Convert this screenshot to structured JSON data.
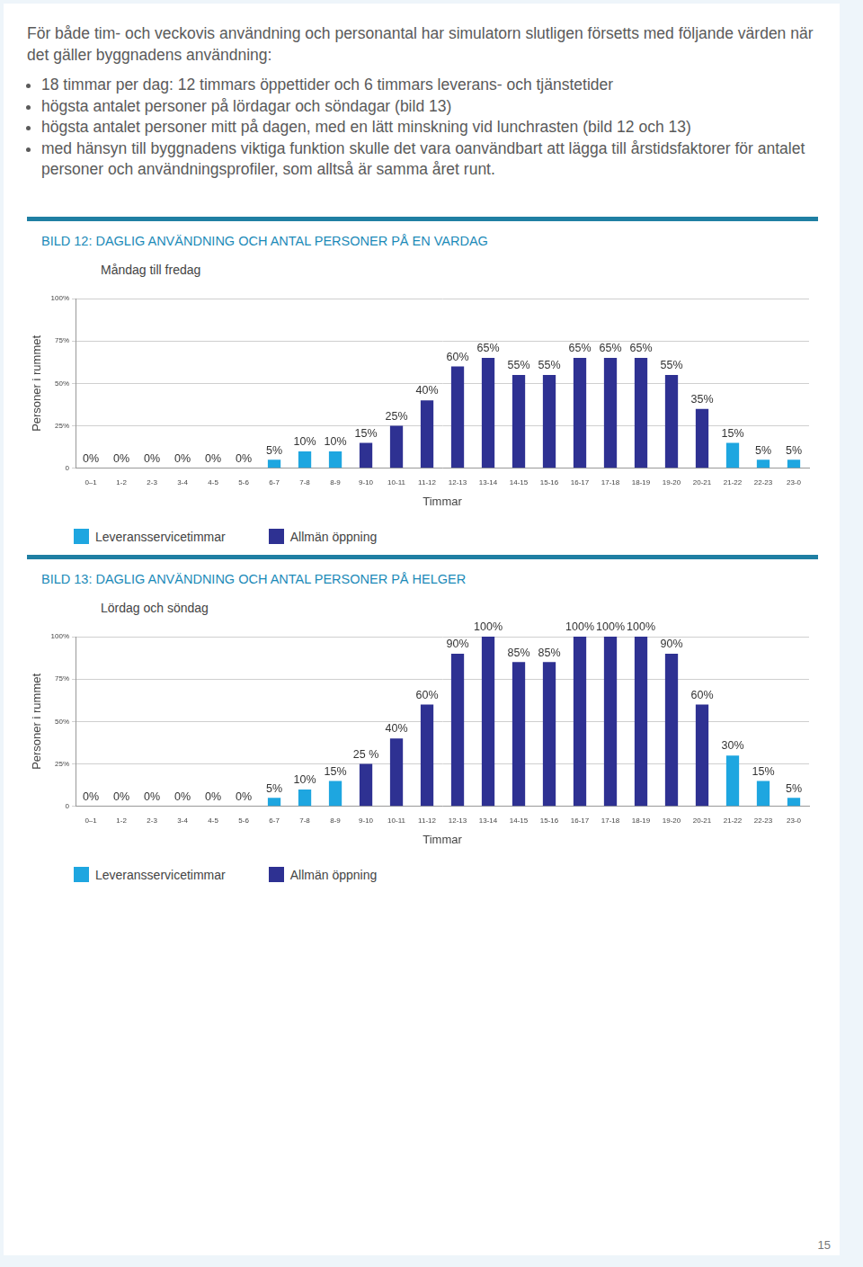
{
  "intro": {
    "text": "För både tim- och veckovis användning och personantal har simulatorn slutligen försetts med följande värden när det gäller byggnadens användning:",
    "bullets": [
      "18 timmar per dag: 12 timmars öppettider och 6 timmars leverans- och tjänstetider",
      "högsta antalet personer på lördagar och söndagar (bild 13)",
      "högsta antalet personer mitt på dagen, med en lätt minskning vid lunchrasten (bild 12 och 13)",
      "med hänsyn till byggnadens viktiga funktion skulle det vara oanvändbart att lägga till årstidsfaktorer för antalet personer och användningsprofiler, som alltså är samma året runt."
    ]
  },
  "page_number": "15",
  "chart_data": [
    {
      "type": "bar",
      "title": "BILD 12: DAGLIG ANVÄNDNING OCH ANTAL PERSONER PÅ EN VARDAG",
      "subtitle": "Måndag till fredag",
      "x_label": "Timmar",
      "y_label": "Personer i rummet",
      "categories": [
        "0–1",
        "1-2",
        "2-3",
        "3-4",
        "4-5",
        "5-6",
        "6-7",
        "7-8",
        "8-9",
        "9-10",
        "10-11",
        "11-12",
        "12-13",
        "13-14",
        "14-15",
        "15-16",
        "16-17",
        "17-18",
        "18-19",
        "19-20",
        "20-21",
        "21-22",
        "22-23",
        "23-0"
      ],
      "series": [
        {
          "name": "Leveransservicetimmar",
          "color": "#1ea6e0",
          "values": [
            0,
            0,
            0,
            0,
            0,
            0,
            5,
            10,
            10,
            null,
            null,
            null,
            null,
            null,
            null,
            null,
            null,
            null,
            null,
            null,
            null,
            15,
            5,
            5
          ],
          "value_labels": [
            "0%",
            "0%",
            "0%",
            "0%",
            "0%",
            "0%",
            "5%",
            "10%",
            "10%",
            null,
            null,
            null,
            null,
            null,
            null,
            null,
            null,
            null,
            null,
            null,
            null,
            "15%",
            "5%",
            "5%"
          ]
        },
        {
          "name": "Allmän öppning",
          "color": "#2e3192",
          "values": [
            null,
            null,
            null,
            null,
            null,
            null,
            null,
            null,
            null,
            15,
            25,
            40,
            60,
            65,
            55,
            55,
            65,
            65,
            65,
            55,
            35,
            null,
            null,
            null
          ],
          "value_labels": [
            null,
            null,
            null,
            null,
            null,
            null,
            null,
            null,
            null,
            "15%",
            "25%",
            "40%",
            "60%",
            "65%",
            "55%",
            "55%",
            "65%",
            "65%",
            "65%",
            "55%",
            "35%",
            null,
            null,
            null
          ]
        }
      ],
      "ylim": [
        0,
        100
      ],
      "yticks": [
        0,
        {
          "value": 25,
          "label": "25%"
        },
        {
          "value": 50,
          "label": "50%"
        },
        {
          "value": 75,
          "label": "75%"
        },
        {
          "value": 100,
          "label": "100%"
        }
      ],
      "grid": true,
      "data_labels": true,
      "legend": "bottom"
    },
    {
      "type": "bar",
      "title": "BILD 13: DAGLIG ANVÄNDNING OCH ANTAL PERSONER PÅ HELGER",
      "subtitle": "Lördag och söndag",
      "x_label": "Timmar",
      "y_label": "Personer i rummet",
      "categories": [
        "0–1",
        "1-2",
        "2-3",
        "3-4",
        "4-5",
        "5-6",
        "6-7",
        "7-8",
        "8-9",
        "9-10",
        "10-11",
        "11-12",
        "12-13",
        "13-14",
        "14-15",
        "15-16",
        "16-17",
        "17-18",
        "18-19",
        "19-20",
        "20-21",
        "21-22",
        "22-23",
        "23-0"
      ],
      "series": [
        {
          "name": "Leveransservicetimmar",
          "color": "#1ea6e0",
          "values": [
            0,
            0,
            0,
            0,
            0,
            0,
            5,
            10,
            15,
            null,
            null,
            null,
            null,
            null,
            null,
            null,
            null,
            null,
            null,
            null,
            null,
            30,
            15,
            5
          ],
          "value_labels": [
            "0%",
            "0%",
            "0%",
            "0%",
            "0%",
            "0%",
            "5%",
            "10%",
            "15%",
            null,
            null,
            null,
            null,
            null,
            null,
            null,
            null,
            null,
            null,
            null,
            null,
            "30%",
            "15%",
            "5%"
          ]
        },
        {
          "name": "Allmän öppning",
          "color": "#2e3192",
          "values": [
            null,
            null,
            null,
            null,
            null,
            null,
            null,
            null,
            null,
            25,
            40,
            60,
            90,
            100,
            85,
            85,
            100,
            100,
            100,
            90,
            60,
            null,
            null,
            null
          ],
          "value_labels": [
            null,
            null,
            null,
            null,
            null,
            null,
            null,
            null,
            null,
            "25 %",
            "40%",
            "60%",
            "90%",
            "100%",
            "85%",
            "85%",
            "100%",
            "100%",
            "100%",
            "90%",
            "60%",
            null,
            null,
            null
          ]
        }
      ],
      "ylim": [
        0,
        100
      ],
      "yticks": [
        0,
        {
          "value": 25,
          "label": "25%"
        },
        {
          "value": 50,
          "label": "50%"
        },
        {
          "value": 75,
          "label": "75%"
        },
        {
          "value": 100,
          "label": "100%"
        }
      ],
      "grid": true,
      "data_labels": true,
      "legend": "bottom"
    }
  ]
}
